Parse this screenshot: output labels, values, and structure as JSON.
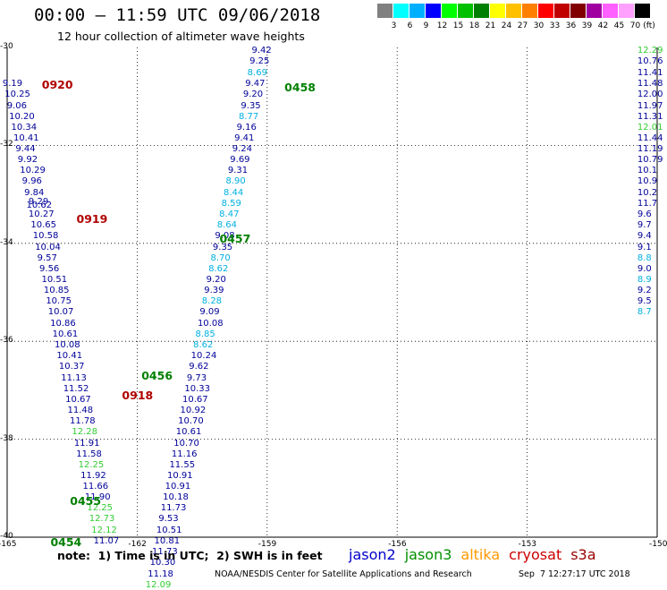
{
  "header": {
    "title": "00:00 – 11:59 UTC 09/06/2018",
    "subtitle": "12 hour collection of altimeter wave heights"
  },
  "colorbar": {
    "swatches": [
      "#808080",
      "#00ffff",
      "#00b0ff",
      "#0000ff",
      "#00ff00",
      "#00c000",
      "#008000",
      "#ffff00",
      "#ffc000",
      "#ff8000",
      "#ff0000",
      "#c00000",
      "#800000",
      "#a000a0",
      "#ff60ff",
      "#ffa0ff",
      "#000000"
    ],
    "labels": [
      "3",
      "6",
      "9",
      "12",
      "15",
      "18",
      "21",
      "24",
      "27",
      "30",
      "33",
      "36",
      "39",
      "42",
      "45",
      "70"
    ],
    "unit": "(ft)"
  },
  "map": {
    "lat_labels": [
      "-30",
      "-32",
      "-34",
      "-36",
      "-38",
      "-40"
    ],
    "lon_labels": [
      "-165",
      "-162",
      "-159",
      "-156",
      "-153",
      "-150"
    ]
  },
  "wave_data": {
    "pass_labels": [
      {
        "text": "0920",
        "color": "#b00000",
        "lon": -164.2,
        "lat": -30.75
      },
      {
        "text": "0919",
        "color": "#b00000",
        "lon": -163.4,
        "lat": -33.5
      },
      {
        "text": "0918",
        "color": "#b00000",
        "lon": -162.35,
        "lat": -37.1
      },
      {
        "text": "0458",
        "color": "#008000",
        "lon": -158.6,
        "lat": -30.8
      },
      {
        "text": "0457",
        "color": "#008000",
        "lon": -160.1,
        "lat": -33.9
      },
      {
        "text": "0456",
        "color": "#008000",
        "lon": -161.9,
        "lat": -36.7
      },
      {
        "text": "0455",
        "color": "#008000",
        "lon": -163.55,
        "lat": -39.25
      },
      {
        "text": "0454",
        "color": "#008000",
        "lon": -164.0,
        "lat": -40.1
      }
    ],
    "points": [
      {
        "v": "9.19",
        "c": "#000099",
        "lon": -164.9,
        "lat": -30.75
      },
      {
        "v": "10.25",
        "c": "#000099",
        "lon": -164.85,
        "lat": -30.97
      },
      {
        "v": "9.06",
        "c": "#000099",
        "lon": -164.8,
        "lat": -31.2
      },
      {
        "v": "10.20",
        "c": "#000099",
        "lon": -164.75,
        "lat": -31.42
      },
      {
        "v": "10.34",
        "c": "#000099",
        "lon": -164.7,
        "lat": -31.64
      },
      {
        "v": "10.41",
        "c": "#000099",
        "lon": -164.65,
        "lat": -31.86
      },
      {
        "v": "9.44",
        "c": "#000099",
        "lon": -164.6,
        "lat": -32.09
      },
      {
        "v": "9.92",
        "c": "#000099",
        "lon": -164.55,
        "lat": -32.31
      },
      {
        "v": "10.29",
        "c": "#000099",
        "lon": -164.5,
        "lat": -32.53
      },
      {
        "v": "9.96",
        "c": "#000099",
        "lon": -164.45,
        "lat": -32.75
      },
      {
        "v": "9.84",
        "c": "#000099",
        "lon": -164.4,
        "lat": -32.98
      },
      {
        "v": "9.29",
        "c": "#000099",
        "lon": -164.3,
        "lat": -33.17
      },
      {
        "v": "10.62",
        "c": "#000099",
        "lon": -164.35,
        "lat": -33.23
      },
      {
        "v": "10.27",
        "c": "#000099",
        "lon": -164.3,
        "lat": -33.42
      },
      {
        "v": "10.65",
        "c": "#000099",
        "lon": -164.25,
        "lat": -33.64
      },
      {
        "v": "10.58",
        "c": "#000099",
        "lon": -164.2,
        "lat": -33.86
      },
      {
        "v": "10.04",
        "c": "#000099",
        "lon": -164.15,
        "lat": -34.09
      },
      {
        "v": "9.57",
        "c": "#000099",
        "lon": -164.1,
        "lat": -34.31
      },
      {
        "v": "9.56",
        "c": "#000099",
        "lon": -164.05,
        "lat": -34.53
      },
      {
        "v": "10.51",
        "c": "#000099",
        "lon": -164.0,
        "lat": -34.75
      },
      {
        "v": "10.85",
        "c": "#000099",
        "lon": -163.95,
        "lat": -34.98
      },
      {
        "v": "10.75",
        "c": "#000099",
        "lon": -163.9,
        "lat": -35.2
      },
      {
        "v": "10.07",
        "c": "#000099",
        "lon": -163.85,
        "lat": -35.42
      },
      {
        "v": "10.86",
        "c": "#000099",
        "lon": -163.8,
        "lat": -35.64
      },
      {
        "v": "10.61",
        "c": "#000099",
        "lon": -163.75,
        "lat": -35.87
      },
      {
        "v": "10.08",
        "c": "#000099",
        "lon": -163.7,
        "lat": -36.09
      },
      {
        "v": "10.41",
        "c": "#000099",
        "lon": -163.65,
        "lat": -36.31
      },
      {
        "v": "10.37",
        "c": "#000099",
        "lon": -163.6,
        "lat": -36.53
      },
      {
        "v": "11.13",
        "c": "#000099",
        "lon": -163.55,
        "lat": -36.76
      },
      {
        "v": "11.52",
        "c": "#000099",
        "lon": -163.5,
        "lat": -36.98
      },
      {
        "v": "10.67",
        "c": "#000099",
        "lon": -163.45,
        "lat": -37.2
      },
      {
        "v": "11.48",
        "c": "#000099",
        "lon": -163.4,
        "lat": -37.42
      },
      {
        "v": "11.78",
        "c": "#000099",
        "lon": -163.35,
        "lat": -37.64
      },
      {
        "v": "12.28",
        "c": "#33cc33",
        "lon": -163.3,
        "lat": -37.87
      },
      {
        "v": "11.91",
        "c": "#000099",
        "lon": -163.25,
        "lat": -38.09
      },
      {
        "v": "11.58",
        "c": "#000099",
        "lon": -163.2,
        "lat": -38.31
      },
      {
        "v": "12.25",
        "c": "#33cc33",
        "lon": -163.15,
        "lat": -38.53
      },
      {
        "v": "11.92",
        "c": "#000099",
        "lon": -163.1,
        "lat": -38.76
      },
      {
        "v": "11.66",
        "c": "#000099",
        "lon": -163.05,
        "lat": -38.98
      },
      {
        "v": "11.90",
        "c": "#000099",
        "lon": -163.0,
        "lat": -39.2
      },
      {
        "v": "12.25",
        "c": "#33cc33",
        "lon": -162.95,
        "lat": -39.42
      },
      {
        "v": "12.73",
        "c": "#33cc33",
        "lon": -162.9,
        "lat": -39.64
      },
      {
        "v": "12.12",
        "c": "#33cc33",
        "lon": -162.85,
        "lat": -39.87
      },
      {
        "v": "11.07",
        "c": "#000099",
        "lon": -162.8,
        "lat": -40.09
      },
      {
        "v": "9.42",
        "c": "#000099",
        "lon": -159.15,
        "lat": -30.08
      },
      {
        "v": "9.25",
        "c": "#000099",
        "lon": -159.2,
        "lat": -30.3
      },
      {
        "v": "8.69",
        "c": "#00b0e0",
        "lon": -159.25,
        "lat": -30.53
      },
      {
        "v": "9.47",
        "c": "#000099",
        "lon": -159.3,
        "lat": -30.75
      },
      {
        "v": "9.20",
        "c": "#000099",
        "lon": -159.35,
        "lat": -30.97
      },
      {
        "v": "9.35",
        "c": "#000099",
        "lon": -159.4,
        "lat": -31.2
      },
      {
        "v": "8.77",
        "c": "#00b0e0",
        "lon": -159.45,
        "lat": -31.42
      },
      {
        "v": "9.16",
        "c": "#000099",
        "lon": -159.5,
        "lat": -31.64
      },
      {
        "v": "9.41",
        "c": "#000099",
        "lon": -159.55,
        "lat": -31.86
      },
      {
        "v": "9.24",
        "c": "#000099",
        "lon": -159.6,
        "lat": -32.09
      },
      {
        "v": "9.69",
        "c": "#000099",
        "lon": -159.65,
        "lat": -32.31
      },
      {
        "v": "9.31",
        "c": "#000099",
        "lon": -159.7,
        "lat": -32.53
      },
      {
        "v": "8.90",
        "c": "#00b0e0",
        "lon": -159.75,
        "lat": -32.75
      },
      {
        "v": "8.44",
        "c": "#00b0e0",
        "lon": -159.8,
        "lat": -32.98
      },
      {
        "v": "8.59",
        "c": "#00b0e0",
        "lon": -159.85,
        "lat": -33.2
      },
      {
        "v": "8.47",
        "c": "#00b0e0",
        "lon": -159.9,
        "lat": -33.42
      },
      {
        "v": "8.64",
        "c": "#00b0e0",
        "lon": -159.95,
        "lat": -33.64
      },
      {
        "v": "9.08",
        "c": "#000099",
        "lon": -160.0,
        "lat": -33.86
      },
      {
        "v": "9.35",
        "c": "#000099",
        "lon": -160.05,
        "lat": -34.09
      },
      {
        "v": "8.70",
        "c": "#00b0e0",
        "lon": -160.1,
        "lat": -34.31
      },
      {
        "v": "8.62",
        "c": "#00b0e0",
        "lon": -160.15,
        "lat": -34.53
      },
      {
        "v": "9.20",
        "c": "#000099",
        "lon": -160.2,
        "lat": -34.75
      },
      {
        "v": "9.39",
        "c": "#000099",
        "lon": -160.25,
        "lat": -34.98
      },
      {
        "v": "8.28",
        "c": "#00b0e0",
        "lon": -160.3,
        "lat": -35.2
      },
      {
        "v": "9.09",
        "c": "#000099",
        "lon": -160.35,
        "lat": -35.42
      },
      {
        "v": "10.08",
        "c": "#000099",
        "lon": -160.4,
        "lat": -35.64
      },
      {
        "v": "8.85",
        "c": "#00b0e0",
        "lon": -160.45,
        "lat": -35.87
      },
      {
        "v": "8.62",
        "c": "#00b0e0",
        "lon": -160.5,
        "lat": -36.09
      },
      {
        "v": "10.24",
        "c": "#000099",
        "lon": -160.55,
        "lat": -36.31
      },
      {
        "v": "9.62",
        "c": "#000099",
        "lon": -160.6,
        "lat": -36.53
      },
      {
        "v": "9.73",
        "c": "#000099",
        "lon": -160.65,
        "lat": -36.76
      },
      {
        "v": "10.33",
        "c": "#000099",
        "lon": -160.7,
        "lat": -36.98
      },
      {
        "v": "10.67",
        "c": "#000099",
        "lon": -160.75,
        "lat": -37.2
      },
      {
        "v": "10.92",
        "c": "#000099",
        "lon": -160.8,
        "lat": -37.42
      },
      {
        "v": "10.70",
        "c": "#000099",
        "lon": -160.85,
        "lat": -37.64
      },
      {
        "v": "10.61",
        "c": "#000099",
        "lon": -160.9,
        "lat": -37.87
      },
      {
        "v": "10.70",
        "c": "#000099",
        "lon": -160.95,
        "lat": -38.09
      },
      {
        "v": "11.16",
        "c": "#000099",
        "lon": -161.0,
        "lat": -38.31
      },
      {
        "v": "11.55",
        "c": "#000099",
        "lon": -161.05,
        "lat": -38.53
      },
      {
        "v": "10.91",
        "c": "#000099",
        "lon": -161.1,
        "lat": -38.76
      },
      {
        "v": "10.91",
        "c": "#000099",
        "lon": -161.15,
        "lat": -38.98
      },
      {
        "v": "10.18",
        "c": "#000099",
        "lon": -161.2,
        "lat": -39.2
      },
      {
        "v": "11.73",
        "c": "#000099",
        "lon": -161.25,
        "lat": -39.42
      },
      {
        "v": "9.53",
        "c": "#000099",
        "lon": -161.3,
        "lat": -39.64
      },
      {
        "v": "10.51",
        "c": "#000099",
        "lon": -161.35,
        "lat": -39.87
      },
      {
        "v": "10.81",
        "c": "#000099",
        "lon": -161.4,
        "lat": -40.09
      },
      {
        "v": "11.73",
        "c": "#000099",
        "lon": -161.45,
        "lat": -40.31
      },
      {
        "v": "10.30",
        "c": "#000099",
        "lon": -161.5,
        "lat": -40.53
      },
      {
        "v": "11.18",
        "c": "#000099",
        "lon": -161.55,
        "lat": -40.76
      },
      {
        "v": "12.09",
        "c": "#33cc33",
        "lon": -161.6,
        "lat": -40.98
      },
      {
        "v": "12.29",
        "c": "#33cc33",
        "lon": -150.25,
        "lat": -30.08
      },
      {
        "v": "10.76",
        "c": "#000099",
        "lon": -150.25,
        "lat": -30.3
      },
      {
        "v": "11.41",
        "c": "#000099",
        "lon": -150.25,
        "lat": -30.53
      },
      {
        "v": "11.48",
        "c": "#000099",
        "lon": -150.25,
        "lat": -30.75
      },
      {
        "v": "12.00",
        "c": "#000099",
        "lon": -150.25,
        "lat": -30.97
      },
      {
        "v": "11.97",
        "c": "#000099",
        "lon": -150.25,
        "lat": -31.2
      },
      {
        "v": "11.31",
        "c": "#000099",
        "lon": -150.25,
        "lat": -31.42
      },
      {
        "v": "12.01",
        "c": "#33cc33",
        "lon": -150.25,
        "lat": -31.64
      },
      {
        "v": "11.44",
        "c": "#000099",
        "lon": -150.25,
        "lat": -31.86
      },
      {
        "v": "11.19",
        "c": "#000099",
        "lon": -150.25,
        "lat": -32.09
      },
      {
        "v": "10.79",
        "c": "#000099",
        "lon": -150.25,
        "lat": -32.31
      },
      {
        "v": "10.1",
        "c": "#000099",
        "lon": -150.25,
        "lat": -32.53
      },
      {
        "v": "10.9",
        "c": "#000099",
        "lon": -150.25,
        "lat": -32.75
      },
      {
        "v": "10.2",
        "c": "#000099",
        "lon": -150.25,
        "lat": -32.98
      },
      {
        "v": "11.7",
        "c": "#000099",
        "lon": -150.25,
        "lat": -33.2
      },
      {
        "v": "9.6",
        "c": "#000099",
        "lon": -150.25,
        "lat": -33.42
      },
      {
        "v": "9.7",
        "c": "#000099",
        "lon": -150.25,
        "lat": -33.64
      },
      {
        "v": "9.4",
        "c": "#000099",
        "lon": -150.25,
        "lat": -33.86
      },
      {
        "v": "9.1",
        "c": "#000099",
        "lon": -150.25,
        "lat": -34.09
      },
      {
        "v": "8.8",
        "c": "#00b0e0",
        "lon": -150.25,
        "lat": -34.31
      },
      {
        "v": "9.0",
        "c": "#000099",
        "lon": -150.25,
        "lat": -34.53
      },
      {
        "v": "8.9",
        "c": "#00b0e0",
        "lon": -150.25,
        "lat": -34.75
      },
      {
        "v": "9.2",
        "c": "#000099",
        "lon": -150.25,
        "lat": -34.98
      },
      {
        "v": "9.5",
        "c": "#000099",
        "lon": -150.25,
        "lat": -35.2
      },
      {
        "v": "8.7",
        "c": "#00b0e0",
        "lon": -150.25,
        "lat": -35.42
      }
    ]
  },
  "footer": {
    "note": "note:  1) Time is in UTC;  2) SWH is in feet",
    "missions": [
      {
        "name": "jason2",
        "color": "#0000cc"
      },
      {
        "name": "jason3",
        "color": "#009000"
      },
      {
        "name": "altika",
        "color": "#ff9900"
      },
      {
        "name": "cryosat",
        "color": "#cc0000"
      },
      {
        "name": "s3a",
        "color": "#990000"
      }
    ],
    "credit": "NOAA/NESDIS Center for Satellite Applications and Research",
    "timestamp": "Sep  7 12:27:17 UTC 2018"
  }
}
